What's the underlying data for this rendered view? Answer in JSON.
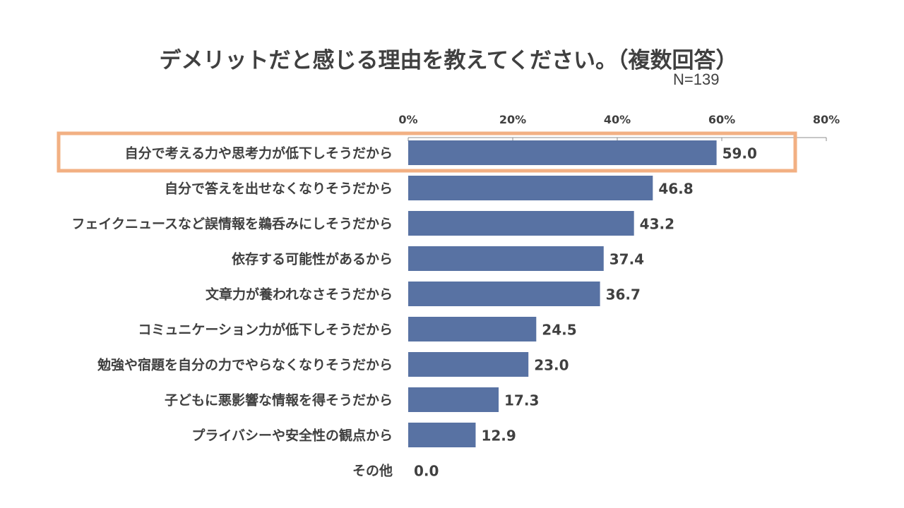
{
  "chart_data": {
    "type": "bar",
    "orientation": "horizontal",
    "title": "デメリットだと感じる理由を教えてください。（複数回答）",
    "subtitle": "N=139",
    "xlabel": "",
    "ylabel": "",
    "xlim": [
      0,
      80
    ],
    "x_ticks": [
      "0%",
      "20%",
      "40%",
      "60%",
      "80%"
    ],
    "x_tick_values": [
      0,
      20,
      40,
      60,
      80
    ],
    "axis_position": "top",
    "grid": false,
    "categories": [
      "自分で考える力や思考力が低下しそうだから",
      "自分で答えを出せなくなりそうだから",
      "フェイクニュースなど誤情報を鵜呑みにしそうだから",
      "依存する可能性があるから",
      "文章力が養われなさそうだから",
      "コミュニケーション力が低下しそうだから",
      "勉強や宿題を自分の力でやらなくなりそうだから",
      "子どもに悪影響な情報を得そうだから",
      "プライバシーや安全性の観点から",
      "その他"
    ],
    "values": [
      59.0,
      46.8,
      43.2,
      37.4,
      36.7,
      24.5,
      23.0,
      17.3,
      12.9,
      0.0
    ],
    "value_labels": [
      "59.0",
      "46.8",
      "43.2",
      "37.4",
      "36.7",
      "24.5",
      "23.0",
      "17.3",
      "12.9",
      "0.0"
    ],
    "highlighted_category_index": 0,
    "colors": {
      "bar": "#5872a3",
      "highlight_box": "#f2b083",
      "axis": "#8c8c8c",
      "text": "#404040"
    }
  }
}
